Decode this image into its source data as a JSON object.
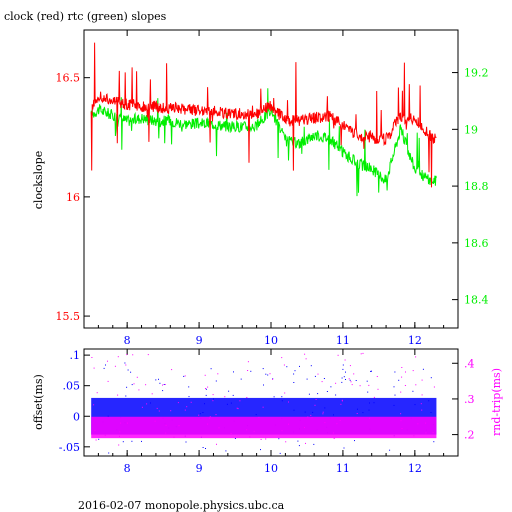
{
  "title": "clock (red) rtc (green) slopes",
  "footer": "2016-02-07  monopole.physics.ubc.ca",
  "colors": {
    "clock": "#ff0000",
    "rtc": "#00ee00",
    "offset": "#0000ff",
    "rndtrip": "#ff00ff",
    "axis": "#000000"
  },
  "chart_data": [
    {
      "type": "line",
      "ylabel": "clockslope",
      "y2label": "",
      "xlim": [
        7.4,
        12.6
      ],
      "ylim": [
        15.45,
        16.7
      ],
      "y2lim": [
        18.3,
        19.35
      ],
      "xticks": [
        8,
        9,
        10,
        11,
        12
      ],
      "yticks": [
        15.5,
        16,
        16.5
      ],
      "y2ticks": [
        18.4,
        18.6,
        18.8,
        19,
        19.2
      ],
      "series": [
        {
          "name": "clock",
          "axis": "left",
          "x": [
            7.5,
            7.6,
            7.8,
            8.0,
            8.2,
            8.4,
            8.6,
            8.8,
            9.0,
            9.2,
            9.4,
            9.6,
            9.8,
            10.0,
            10.2,
            10.4,
            10.6,
            10.8,
            11.0,
            11.2,
            11.4,
            11.6,
            11.8,
            12.0,
            12.2,
            12.3
          ],
          "y": [
            16.38,
            16.42,
            16.4,
            16.39,
            16.38,
            16.38,
            16.37,
            16.37,
            16.36,
            16.36,
            16.35,
            16.35,
            16.35,
            16.38,
            16.32,
            16.32,
            16.33,
            16.34,
            16.3,
            16.26,
            16.25,
            16.24,
            16.34,
            16.32,
            16.26,
            16.24
          ]
        },
        {
          "name": "rtc",
          "axis": "right",
          "x": [
            7.5,
            7.6,
            7.8,
            8.0,
            8.2,
            8.4,
            8.6,
            8.8,
            9.0,
            9.2,
            9.4,
            9.6,
            9.8,
            10.0,
            10.2,
            10.4,
            10.6,
            10.8,
            11.0,
            11.2,
            11.4,
            11.6,
            11.8,
            12.0,
            12.2,
            12.3
          ],
          "y": [
            19.05,
            19.07,
            19.05,
            19.03,
            19.04,
            19.03,
            19.03,
            19.02,
            19.02,
            19.02,
            19.01,
            19.01,
            19.01,
            19.07,
            18.96,
            18.95,
            18.98,
            18.97,
            18.92,
            18.88,
            18.86,
            18.82,
            19.0,
            18.86,
            18.82,
            18.82
          ]
        }
      ]
    },
    {
      "type": "scatter",
      "ylabel": "offset(ms)",
      "y2label": "rnd-trip(ms)",
      "xlim": [
        7.4,
        12.6
      ],
      "ylim": [
        -0.065,
        0.11
      ],
      "y2lim": [
        0.14,
        0.44
      ],
      "xticks": [
        8,
        9,
        10,
        11,
        12
      ],
      "yticks": [
        -0.05,
        0,
        0.05,
        0.1
      ],
      "y2ticks": [
        0.2,
        0.3,
        0.4
      ],
      "series": [
        {
          "name": "offset",
          "axis": "left",
          "band": [
            -0.03,
            0.03
          ],
          "xrange": [
            7.5,
            12.3
          ]
        },
        {
          "name": "rnd-trip",
          "axis": "right",
          "band": [
            0.19,
            0.25
          ],
          "xrange": [
            7.5,
            12.3
          ]
        }
      ]
    }
  ]
}
